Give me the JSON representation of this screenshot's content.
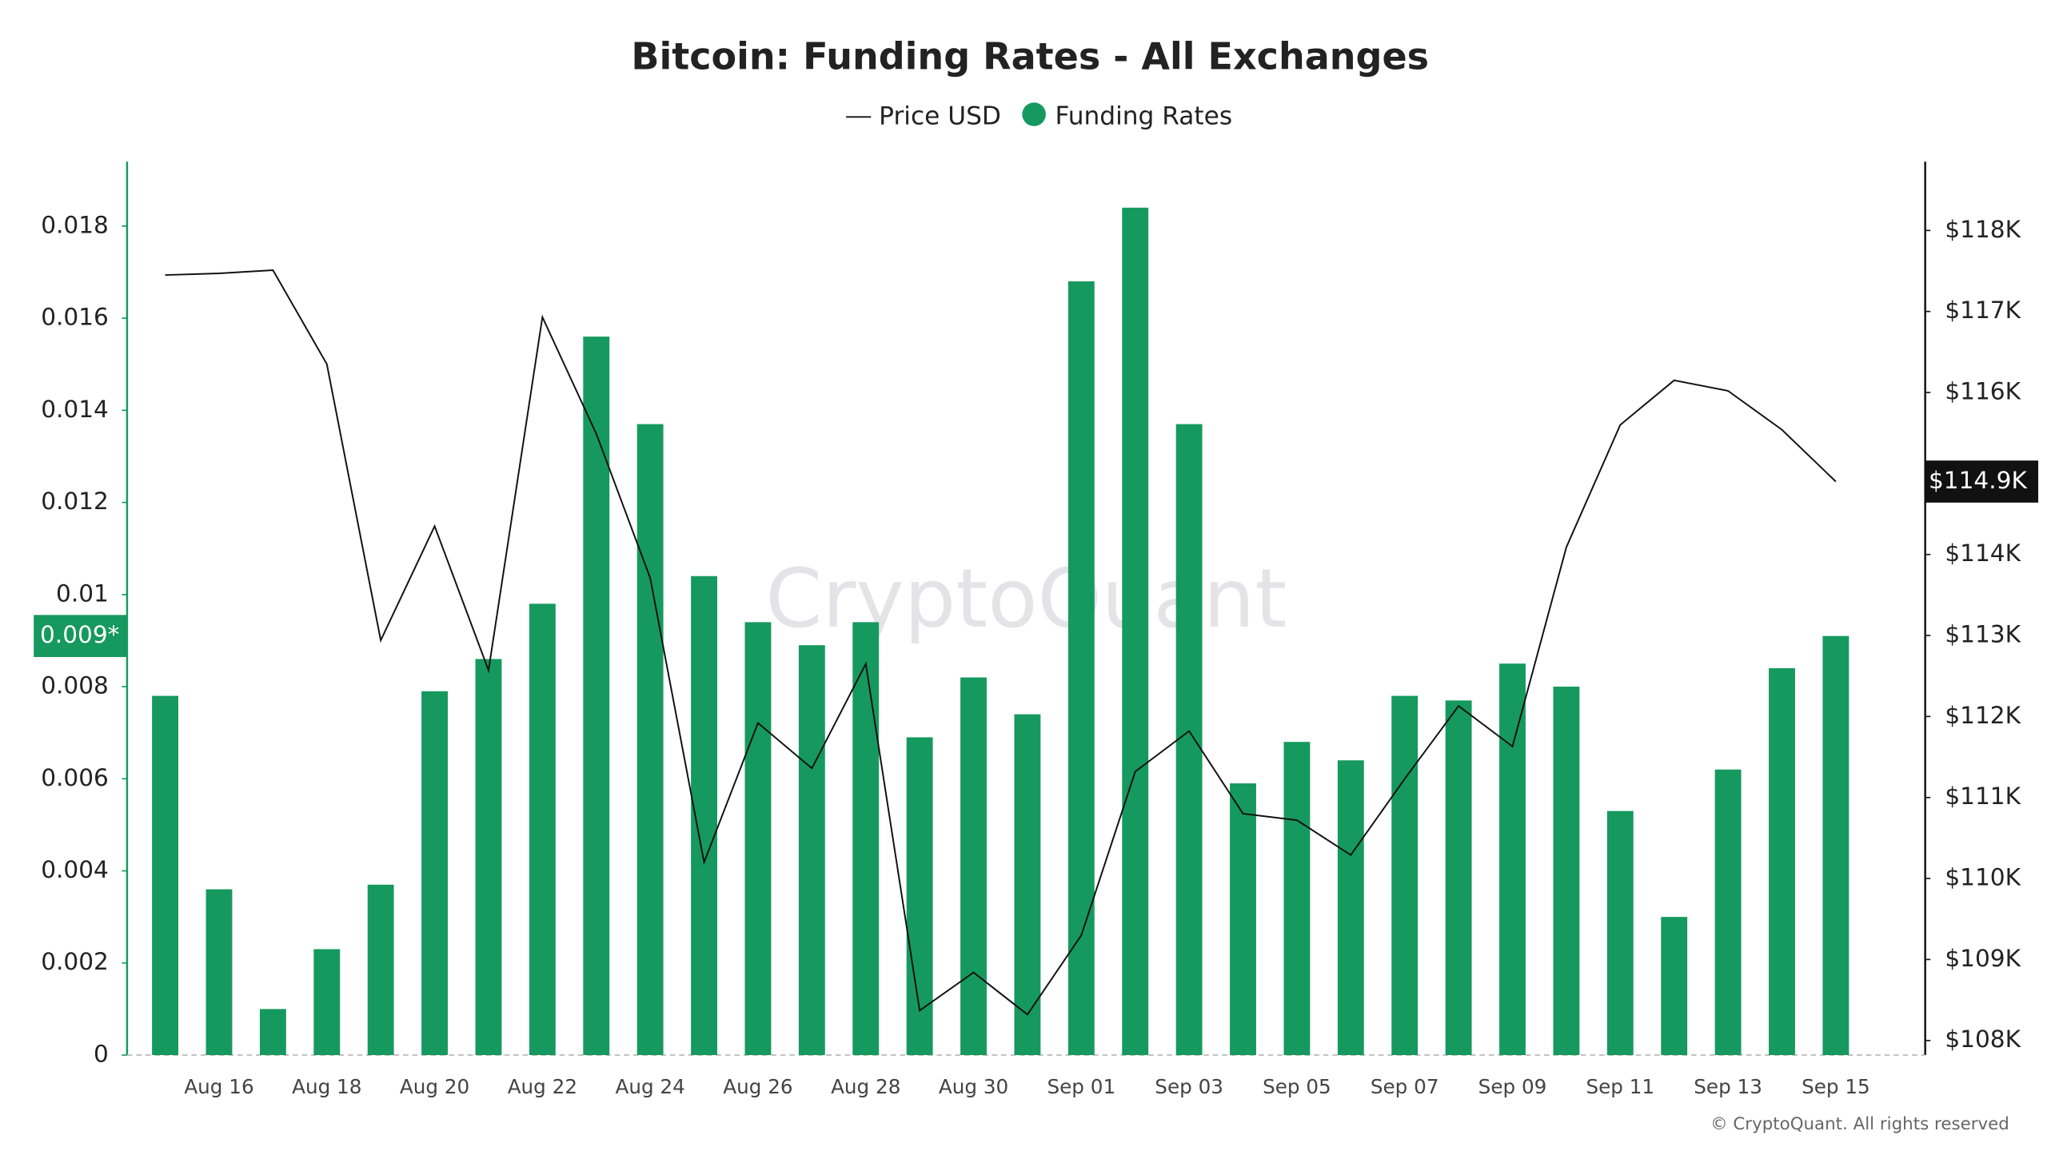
{
  "chart_data": {
    "type": "bar",
    "title": "Bitcoin: Funding Rates - All Exchanges",
    "watermark": "CryptoQuant",
    "footer": "© CryptoQuant. All rights reserved",
    "categories": [
      null,
      "Aug 16",
      null,
      "Aug 18",
      null,
      "Aug 20",
      null,
      "Aug 22",
      null,
      "Aug 24",
      null,
      "Aug 26",
      null,
      "Aug 28",
      null,
      "Aug 30",
      null,
      "Sep 01",
      null,
      "Sep 03",
      null,
      "Sep 05",
      null,
      "Sep 07",
      null,
      "Sep 09",
      null,
      "Sep 11",
      null,
      "Sep 13",
      null,
      "Sep 15"
    ],
    "series": [
      {
        "name": "Price USD",
        "type": "line",
        "axis": "y2",
        "color": "#111111",
        "values": [
          117450,
          117470,
          117510,
          116350,
          112940,
          114350,
          112570,
          116930,
          115490,
          113710,
          110200,
          111920,
          111360,
          112650,
          108370,
          108840,
          108320,
          109300,
          111320,
          111820,
          110800,
          110720,
          110290,
          111230,
          112130,
          111630,
          114090,
          115600,
          116150,
          116020,
          115540,
          114900
        ]
      },
      {
        "name": "Funding Rates",
        "type": "bar",
        "color": "#16995e",
        "values": [
          0.0078,
          0.0036,
          0.001,
          0.0023,
          0.0037,
          0.0079,
          0.0086,
          0.0098,
          0.0156,
          0.0137,
          0.0104,
          0.0094,
          0.0089,
          0.0094,
          0.0069,
          0.0082,
          0.0074,
          0.0168,
          0.0184,
          0.0137,
          0.0059,
          0.0068,
          0.0064,
          0.0078,
          0.0077,
          0.0085,
          0.008,
          0.0053,
          0.003,
          0.0062,
          0.0084,
          0.0091
        ]
      }
    ],
    "last_value_labels": {
      "y": "0.009*",
      "y2": "$114.9K"
    },
    "ylim": [
      0,
      0.0194
    ],
    "yticks": [
      0,
      0.002,
      0.004,
      0.006,
      0.008,
      0.01,
      0.012,
      0.014,
      0.016,
      0.018
    ],
    "y2lim": [
      107820,
      118850
    ],
    "y2ticks": [
      {
        "value": 108000,
        "label": "$108K"
      },
      {
        "value": 109000,
        "label": "$109K"
      },
      {
        "value": 110000,
        "label": "$110K"
      },
      {
        "value": 111000,
        "label": "$111K"
      },
      {
        "value": 112000,
        "label": "$112K"
      },
      {
        "value": 113000,
        "label": "$113K"
      },
      {
        "value": 114000,
        "label": "$114K"
      },
      {
        "value": 116000,
        "label": "$116K"
      },
      {
        "value": 117000,
        "label": "$117K"
      },
      {
        "value": 118000,
        "label": "$118K"
      }
    ],
    "grid": false
  }
}
